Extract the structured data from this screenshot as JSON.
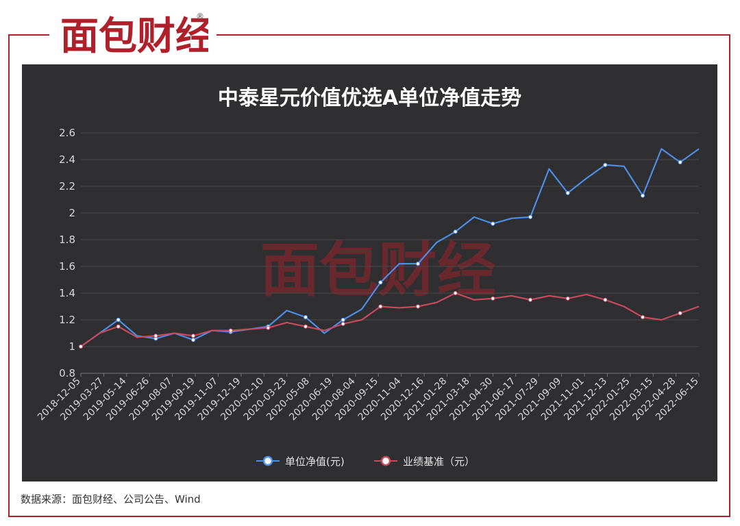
{
  "brand": {
    "logo_text": "面包财经",
    "registered_mark": "®",
    "accent_color": "#b0202a",
    "watermark_text": "面包财经"
  },
  "source_note": "数据来源：面包财经、公司公告、Wind",
  "chart_data": {
    "type": "line",
    "title": "中泰星元价值优选A单位净值走势",
    "xlabel": "",
    "ylabel": "",
    "ylim": [
      0.8,
      2.6
    ],
    "yticks": [
      0.8,
      1,
      1.2,
      1.4,
      1.6,
      1.8,
      2,
      2.2,
      2.4,
      2.6
    ],
    "grid": true,
    "legend_position": "bottom-center",
    "x_tick_labels": [
      "2018-12-05",
      "2019-03-27",
      "2019-05-14",
      "2019-06-26",
      "2019-08-07",
      "2019-09-19",
      "2019-11-07",
      "2019-12-19",
      "2020-02-10",
      "2020-03-23",
      "2020-05-08",
      "2020-06-19",
      "2020-08-04",
      "2020-09-15",
      "2020-11-04",
      "2020-12-16",
      "2021-01-28",
      "2021-03-18",
      "2021-04-30",
      "2021-06-17",
      "2021-07-29",
      "2021-09-09",
      "2021-11-01",
      "2021-12-13",
      "2022-01-25",
      "2022-03-15",
      "2022-04-28",
      "2022-06-15"
    ],
    "series": [
      {
        "name": "单位净值(元)",
        "color": "#4f8ee8",
        "values": [
          1.0,
          1.1,
          1.2,
          1.08,
          1.06,
          1.1,
          1.05,
          1.12,
          1.11,
          1.13,
          1.15,
          1.27,
          1.22,
          1.1,
          1.2,
          1.28,
          1.48,
          1.62,
          1.62,
          1.78,
          1.86,
          1.97,
          1.92,
          1.96,
          1.97,
          2.33,
          2.15,
          2.26,
          2.36,
          2.35,
          2.13,
          2.48,
          2.38,
          2.48
        ]
      },
      {
        "name": "业绩基准（元）",
        "color": "#c84a5e",
        "values": [
          1.0,
          1.1,
          1.15,
          1.07,
          1.08,
          1.1,
          1.08,
          1.12,
          1.12,
          1.13,
          1.14,
          1.18,
          1.15,
          1.12,
          1.17,
          1.2,
          1.3,
          1.29,
          1.3,
          1.33,
          1.4,
          1.35,
          1.36,
          1.38,
          1.35,
          1.38,
          1.36,
          1.39,
          1.35,
          1.3,
          1.22,
          1.2,
          1.25,
          1.3
        ]
      }
    ]
  }
}
